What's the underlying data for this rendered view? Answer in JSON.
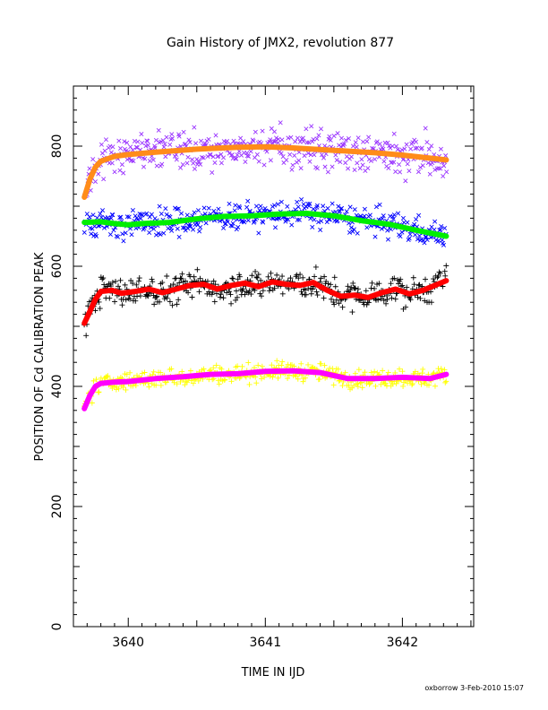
{
  "chart_data": {
    "type": "scatter",
    "title": "Gain History of JMX2, revolution 877",
    "xlabel": "TIME IN IJD",
    "ylabel": "POSITION OF Cd CALIBRATION PEAK",
    "xlim": [
      3639.6,
      3642.52
    ],
    "ylim": [
      0,
      900
    ],
    "x_ticks": [
      3640,
      3641,
      3642
    ],
    "x_tick_labels": [
      "3640",
      "3641",
      "3642"
    ],
    "y_ticks": [
      0,
      200,
      400,
      600,
      800
    ],
    "y_tick_labels": [
      "0",
      "200",
      "400",
      "600",
      "800"
    ],
    "grid": false,
    "legend": "none",
    "footer": "oxborrow  3-Feb-2010 15:07",
    "series": [
      {
        "marker": "x",
        "color": "#9933ff",
        "x_range": [
          3639.68,
          3642.32
        ],
        "trend": {
          "color": "#ff8c1a",
          "x": [
            3639.68,
            3639.72,
            3639.76,
            3639.8,
            3639.9,
            3640.0,
            3640.2,
            3640.5,
            3640.8,
            3641.0,
            3641.2,
            3641.5,
            3641.8,
            3642.0,
            3642.32
          ],
          "y": [
            715,
            745,
            765,
            775,
            783,
            786,
            790,
            795,
            798,
            799,
            797,
            793,
            789,
            785,
            777
          ]
        },
        "scatter_sd": 22
      },
      {
        "marker": "x",
        "color": "#0000ff",
        "x_range": [
          3639.68,
          3642.32
        ],
        "trend": {
          "color": "#00ee00",
          "x": [
            3639.68,
            3639.8,
            3639.9,
            3640.0,
            3640.1,
            3640.3,
            3640.5,
            3640.7,
            3640.9,
            3641.1,
            3641.3,
            3641.5,
            3641.7,
            3641.9,
            3642.1,
            3642.32
          ],
          "y": [
            673,
            674,
            671,
            669,
            671,
            673,
            679,
            683,
            684,
            687,
            688,
            684,
            676,
            670,
            660,
            650
          ]
        },
        "scatter_sd": 15
      },
      {
        "marker": "+",
        "color": "#000000",
        "x_range": [
          3639.68,
          3642.32
        ],
        "trend": {
          "color": "#ff0000",
          "x": [
            3639.68,
            3639.72,
            3639.76,
            3639.8,
            3639.88,
            3639.95,
            3640.05,
            3640.15,
            3640.25,
            3640.35,
            3640.45,
            3640.55,
            3640.65,
            3640.75,
            3640.85,
            3640.95,
            3641.05,
            3641.15,
            3641.25,
            3641.35,
            3641.45,
            3641.55,
            3641.65,
            3641.75,
            3641.85,
            3641.95,
            3642.05,
            3642.15,
            3642.32
          ],
          "y": [
            505,
            525,
            545,
            558,
            560,
            555,
            558,
            562,
            556,
            562,
            568,
            570,
            562,
            568,
            572,
            566,
            574,
            570,
            568,
            573,
            560,
            550,
            552,
            548,
            556,
            562,
            554,
            560,
            576
          ]
        },
        "scatter_sd": 16
      },
      {
        "marker": "+",
        "color": "#ffff00",
        "x_range": [
          3639.68,
          3642.32
        ],
        "trend": {
          "color": "#ff00ff",
          "x": [
            3639.68,
            3639.72,
            3639.76,
            3639.8,
            3639.9,
            3640.0,
            3640.2,
            3640.4,
            3640.6,
            3640.8,
            3641.0,
            3641.2,
            3641.4,
            3641.6,
            3641.8,
            3642.0,
            3642.2,
            3642.32
          ],
          "y": [
            363,
            385,
            400,
            405,
            407,
            408,
            413,
            416,
            420,
            421,
            425,
            426,
            423,
            413,
            413,
            415,
            413,
            420
          ]
        },
        "scatter_sd": 10
      }
    ]
  }
}
